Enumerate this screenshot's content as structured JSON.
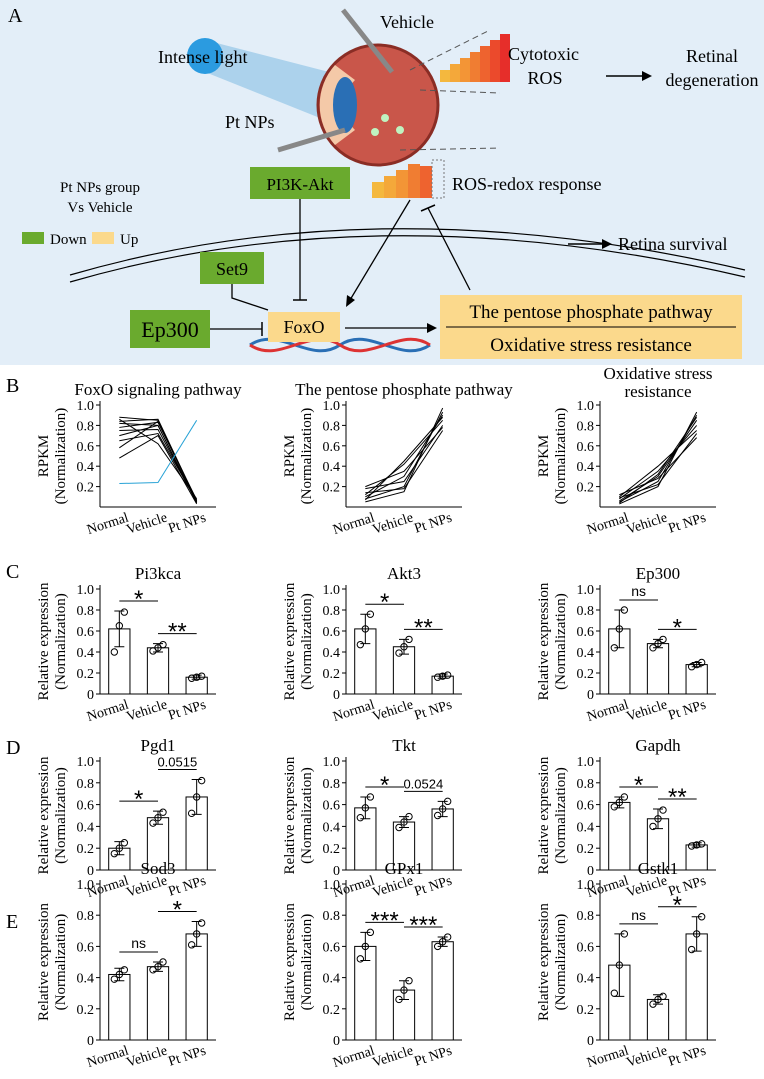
{
  "diagram": {
    "panel_labels": [
      "A",
      "B",
      "C",
      "D",
      "E"
    ],
    "intense_light": "Intense light",
    "vehicle": "Vehicle",
    "pt_nps": "Pt NPs",
    "cytotoxic_ros": [
      "Cytotoxic",
      "ROS"
    ],
    "retinal_degeneration": [
      "Retinal",
      "degeneration"
    ],
    "legend_title": [
      "Pt NPs group",
      "Vs Vehicle"
    ],
    "legend_down": "Down",
    "legend_up": "Up",
    "pi3k": "PI3K-Akt",
    "ros_redox": "ROS-redox response",
    "retina_survival": "Retina survival",
    "set9": "Set9",
    "ep300": "Ep300",
    "foxo": "FoxO",
    "pathway_box": [
      "The pentose phosphate pathway",
      "Oxidative stress resistance"
    ]
  },
  "chart_data": [
    {
      "type": "line",
      "title": "FoxO signaling pathway",
      "ylabel": [
        "RPKM",
        "(Normalization)"
      ],
      "categories": [
        "Normal",
        "Vehicle",
        "Pt NPs"
      ],
      "ylim": [
        0,
        1
      ],
      "yticks": [
        0.2,
        0.4,
        0.6,
        0.8,
        {
          "value": 1,
          "label": "1.0"
        }
      ],
      "series": [
        {
          "color": "#000000",
          "values": [
            0.88,
            0.85,
            0.05
          ]
        },
        {
          "color": "#000000",
          "values": [
            0.84,
            0.86,
            0.06
          ]
        },
        {
          "color": "#000000",
          "values": [
            0.82,
            0.8,
            0.04
          ]
        },
        {
          "color": "#000000",
          "values": [
            0.78,
            0.83,
            0.07
          ]
        },
        {
          "color": "#000000",
          "values": [
            0.75,
            0.76,
            0.05
          ]
        },
        {
          "color": "#000000",
          "values": [
            0.7,
            0.8,
            0.04
          ]
        },
        {
          "color": "#000000",
          "values": [
            0.65,
            0.72,
            0.06
          ]
        },
        {
          "color": "#000000",
          "values": [
            0.58,
            0.84,
            0.05
          ]
        },
        {
          "color": "#000000",
          "values": [
            0.48,
            0.7,
            0.03
          ]
        },
        {
          "color": "#000000",
          "values": [
            0.86,
            0.62,
            0.08
          ]
        },
        {
          "color": "#29a3d6",
          "values": [
            0.23,
            0.24,
            0.85
          ]
        }
      ]
    },
    {
      "type": "line",
      "title": "The pentose phosphate pathway",
      "ylabel": [
        "RPKM",
        "(Normalization)"
      ],
      "categories": [
        "Normal",
        "Vehicle",
        "Pt NPs"
      ],
      "ylim": [
        0,
        1
      ],
      "yticks": [
        0.2,
        0.4,
        0.6,
        0.8,
        {
          "value": 1,
          "label": "1.0"
        }
      ],
      "series": [
        {
          "color": "#000000",
          "values": [
            0.05,
            0.15,
            0.97
          ]
        },
        {
          "color": "#000000",
          "values": [
            0.08,
            0.2,
            0.93
          ]
        },
        {
          "color": "#000000",
          "values": [
            0.1,
            0.3,
            0.9
          ]
        },
        {
          "color": "#000000",
          "values": [
            0.12,
            0.42,
            0.85
          ]
        },
        {
          "color": "#000000",
          "values": [
            0.18,
            0.25,
            0.8
          ]
        },
        {
          "color": "#000000",
          "values": [
            0.2,
            0.35,
            0.78
          ]
        },
        {
          "color": "#000000",
          "values": [
            0.07,
            0.45,
            0.88
          ]
        },
        {
          "color": "#000000",
          "values": [
            0.14,
            0.18,
            0.75
          ]
        }
      ]
    },
    {
      "type": "line",
      "title": [
        "Oxidative  stress",
        "resistance"
      ],
      "ylabel": [
        "RPKM",
        "(Normalization)"
      ],
      "categories": [
        "Normal",
        "Vehicle",
        "Pt NPs"
      ],
      "ylim": [
        0,
        1
      ],
      "yticks": [
        0.2,
        0.4,
        0.6,
        0.8,
        {
          "value": 1,
          "label": "1.0"
        }
      ],
      "series": [
        {
          "color": "#000000",
          "values": [
            0.03,
            0.2,
            0.93
          ]
        },
        {
          "color": "#000000",
          "values": [
            0.05,
            0.25,
            0.9
          ]
        },
        {
          "color": "#000000",
          "values": [
            0.06,
            0.3,
            0.85
          ]
        },
        {
          "color": "#000000",
          "values": [
            0.08,
            0.35,
            0.8
          ]
        },
        {
          "color": "#000000",
          "values": [
            0.1,
            0.4,
            0.75
          ]
        },
        {
          "color": "#000000",
          "values": [
            0.12,
            0.28,
            0.68
          ]
        },
        {
          "color": "#000000",
          "values": [
            0.04,
            0.32,
            0.88
          ]
        },
        {
          "color": "#000000",
          "values": [
            0.09,
            0.22,
            0.72
          ]
        }
      ]
    },
    {
      "type": "bar",
      "title": "Pi3kca",
      "ylabel": [
        "Relative expression",
        "(Normalization)"
      ],
      "categories": [
        "Normal",
        "Vehicle",
        "Pt NPs"
      ],
      "values": [
        0.62,
        0.44,
        0.16
      ],
      "errors": [
        0.17,
        0.04,
        0.02
      ],
      "points": [
        [
          0.4,
          0.65,
          0.78
        ],
        [
          0.41,
          0.44,
          0.47
        ],
        [
          0.15,
          0.16,
          0.17
        ]
      ],
      "comparisons": [
        {
          "pair": [
            0,
            1
          ],
          "label": "*"
        },
        {
          "pair": [
            1,
            2
          ],
          "label": "**"
        }
      ],
      "ylim": [
        0,
        1
      ],
      "yticks": [
        0,
        0.2,
        0.4,
        0.6,
        0.8,
        {
          "value": 1,
          "label": "1.0"
        }
      ],
      "color": "#ffffff"
    },
    {
      "type": "bar",
      "title": "Akt3",
      "ylabel": [
        "Relative expression",
        "(Normalization)"
      ],
      "categories": [
        "Normal",
        "Vehicle",
        "Pt NPs"
      ],
      "values": [
        0.62,
        0.45,
        0.17
      ],
      "errors": [
        0.14,
        0.07,
        0.02
      ],
      "points": [
        [
          0.47,
          0.62,
          0.76
        ],
        [
          0.39,
          0.45,
          0.52
        ],
        [
          0.16,
          0.17,
          0.18
        ]
      ],
      "comparisons": [
        {
          "pair": [
            0,
            1
          ],
          "label": "*"
        },
        {
          "pair": [
            1,
            2
          ],
          "label": "**"
        }
      ],
      "ylim": [
        0,
        1
      ],
      "yticks": [
        0,
        0.2,
        0.4,
        0.6,
        0.8,
        {
          "value": 1,
          "label": "1.0"
        }
      ],
      "color": "#ffffff"
    },
    {
      "type": "bar",
      "title": "Ep300",
      "ylabel": [
        "Relative expression",
        "(Normalization)"
      ],
      "categories": [
        "Normal",
        "Vehicle",
        "Pt NPs"
      ],
      "values": [
        0.62,
        0.48,
        0.28
      ],
      "errors": [
        0.18,
        0.04,
        0.02
      ],
      "points": [
        [
          0.44,
          0.62,
          0.8
        ],
        [
          0.44,
          0.48,
          0.52
        ],
        [
          0.26,
          0.28,
          0.3
        ]
      ],
      "comparisons": [
        {
          "pair": [
            0,
            1
          ],
          "label": "ns"
        },
        {
          "pair": [
            1,
            2
          ],
          "label": "*"
        }
      ],
      "ylim": [
        0,
        1
      ],
      "yticks": [
        0,
        0.2,
        0.4,
        0.6,
        0.8,
        {
          "value": 1,
          "label": "1.0"
        }
      ],
      "color": "#ffffff"
    },
    {
      "type": "bar",
      "title": "Pgd1",
      "ylabel": [
        "Relative expression",
        "(Normalization)"
      ],
      "categories": [
        "Normal",
        "Vehicle",
        "Pt NPs"
      ],
      "values": [
        0.2,
        0.48,
        0.67
      ],
      "errors": [
        0.06,
        0.06,
        0.16
      ],
      "points": [
        [
          0.15,
          0.2,
          0.25
        ],
        [
          0.43,
          0.48,
          0.53
        ],
        [
          0.52,
          0.67,
          0.82
        ]
      ],
      "comparisons": [
        {
          "pair": [
            0,
            1
          ],
          "label": "*"
        },
        {
          "pair": [
            1,
            2
          ],
          "label": "0.0515"
        }
      ],
      "ylim": [
        0,
        1
      ],
      "yticks": [
        0,
        0.2,
        0.4,
        0.6,
        0.8,
        {
          "value": 1,
          "label": "1.0"
        }
      ],
      "color": "#ffffff"
    },
    {
      "type": "bar",
      "title": "Tkt",
      "ylabel": [
        "Relative expression",
        "(Normalization)"
      ],
      "categories": [
        "Normal",
        "Vehicle",
        "Pt NPs"
      ],
      "values": [
        0.57,
        0.44,
        0.56
      ],
      "errors": [
        0.1,
        0.05,
        0.07
      ],
      "points": [
        [
          0.48,
          0.57,
          0.67
        ],
        [
          0.39,
          0.44,
          0.49
        ],
        [
          0.5,
          0.56,
          0.63
        ]
      ],
      "comparisons": [
        {
          "pair": [
            0,
            1
          ],
          "label": "*"
        },
        {
          "pair": [
            1,
            2
          ],
          "label": "0.0524"
        }
      ],
      "ylim": [
        0,
        1
      ],
      "yticks": [
        0,
        0.2,
        0.4,
        0.6,
        0.8,
        {
          "value": 1,
          "label": "1.0"
        }
      ],
      "color": "#ffffff"
    },
    {
      "type": "bar",
      "title": "Gapdh",
      "ylabel": [
        "Relative expression",
        "(Normalization)"
      ],
      "categories": [
        "Normal",
        "Vehicle",
        "Pt NPs"
      ],
      "values": [
        0.62,
        0.47,
        0.23
      ],
      "errors": [
        0.05,
        0.09,
        0.02
      ],
      "points": [
        [
          0.58,
          0.62,
          0.67
        ],
        [
          0.4,
          0.47,
          0.55
        ],
        [
          0.22,
          0.23,
          0.24
        ]
      ],
      "comparisons": [
        {
          "pair": [
            0,
            1
          ],
          "label": "*"
        },
        {
          "pair": [
            1,
            2
          ],
          "label": "**"
        }
      ],
      "ylim": [
        0,
        1
      ],
      "yticks": [
        0,
        0.2,
        0.4,
        0.6,
        0.8,
        {
          "value": 1,
          "label": "1.0"
        }
      ],
      "color": "#ffffff"
    },
    {
      "type": "bar",
      "title": "Sod3",
      "ylabel": [
        "Relative expression",
        "(Normalization)"
      ],
      "categories": [
        "Normal",
        "Vehicle",
        "Pt NPs"
      ],
      "values": [
        0.42,
        0.47,
        0.68
      ],
      "errors": [
        0.04,
        0.03,
        0.08
      ],
      "points": [
        [
          0.39,
          0.42,
          0.45
        ],
        [
          0.45,
          0.47,
          0.5
        ],
        [
          0.61,
          0.68,
          0.75
        ]
      ],
      "comparisons": [
        {
          "pair": [
            0,
            1
          ],
          "label": "ns"
        },
        {
          "pair": [
            1,
            2
          ],
          "label": "*"
        }
      ],
      "ylim": [
        0,
        1
      ],
      "yticks": [
        0,
        0.2,
        0.4,
        0.6,
        0.8,
        {
          "value": 1,
          "label": "1.0"
        }
      ],
      "color": "#ffffff"
    },
    {
      "type": "bar",
      "title": "GPx1",
      "ylabel": [
        "Relative expression",
        "(Normalization)"
      ],
      "categories": [
        "Normal",
        "Vehicle",
        "Pt NPs"
      ],
      "values": [
        0.6,
        0.32,
        0.63
      ],
      "errors": [
        0.09,
        0.06,
        0.03
      ],
      "points": [
        [
          0.52,
          0.6,
          0.69
        ],
        [
          0.26,
          0.32,
          0.38
        ],
        [
          0.6,
          0.63,
          0.66
        ]
      ],
      "comparisons": [
        {
          "pair": [
            0,
            1
          ],
          "label": "***"
        },
        {
          "pair": [
            1,
            2
          ],
          "label": "***"
        }
      ],
      "ylim": [
        0,
        1
      ],
      "yticks": [
        0,
        0.2,
        0.4,
        0.6,
        0.8,
        {
          "value": 1,
          "label": "1.0"
        }
      ],
      "color": "#ffffff"
    },
    {
      "type": "bar",
      "title": "Gstk1",
      "ylabel": [
        "Relative expression",
        "(Normalization)"
      ],
      "categories": [
        "Normal",
        "Vehicle",
        "Pt NPs"
      ],
      "values": [
        0.48,
        0.26,
        0.68
      ],
      "errors": [
        0.2,
        0.03,
        0.11
      ],
      "points": [
        [
          0.3,
          0.48,
          0.68
        ],
        [
          0.23,
          0.26,
          0.28
        ],
        [
          0.58,
          0.68,
          0.79
        ]
      ],
      "comparisons": [
        {
          "pair": [
            0,
            1
          ],
          "label": "ns"
        },
        {
          "pair": [
            1,
            2
          ],
          "label": "*"
        }
      ],
      "ylim": [
        0,
        1
      ],
      "yticks": [
        0,
        0.2,
        0.4,
        0.6,
        0.8,
        {
          "value": 1,
          "label": "1.0"
        }
      ],
      "color": "#ffffff"
    }
  ]
}
